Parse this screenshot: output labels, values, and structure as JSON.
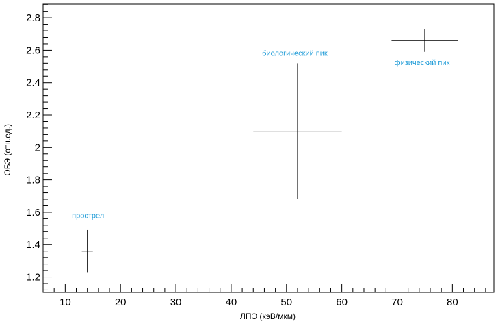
{
  "chart_data": {
    "type": "scatter",
    "xlabel": "ЛПЭ (кэВ/мкм)",
    "ylabel": "ОБЭ (отн.ед.)",
    "xlim": [
      6,
      87.5
    ],
    "ylim": [
      1.105,
      2.885
    ],
    "x_ticks": [
      10,
      20,
      30,
      40,
      50,
      60,
      70,
      80
    ],
    "y_ticks": [
      1.2,
      1.4,
      1.6,
      1.8,
      2,
      2.2,
      2.4,
      2.6,
      2.8
    ],
    "x_tick_labels": [
      "10",
      "20",
      "30",
      "40",
      "50",
      "60",
      "70",
      "80"
    ],
    "y_tick_labels": [
      "1.2",
      "1.4",
      "1.6",
      "1.8",
      "2",
      "2.2",
      "2.4",
      "2.6",
      "2.8"
    ],
    "grid": false,
    "points": [
      {
        "label": "прострел",
        "x": 14,
        "y": 1.36,
        "x_err": 1,
        "y_err_low": 0.13,
        "y_err_high": 0.13
      },
      {
        "label": "биологический пик",
        "x": 52,
        "y": 2.1,
        "x_err": 8,
        "y_err_low": 0.42,
        "y_err_high": 0.42
      },
      {
        "label": "физический пик",
        "x": 75,
        "y": 2.66,
        "x_err": 6,
        "y_err_low": 0.07,
        "y_err_high": 0.07
      }
    ],
    "colors": {
      "markers": "#000000",
      "annotations": "#1e9bd7"
    }
  }
}
